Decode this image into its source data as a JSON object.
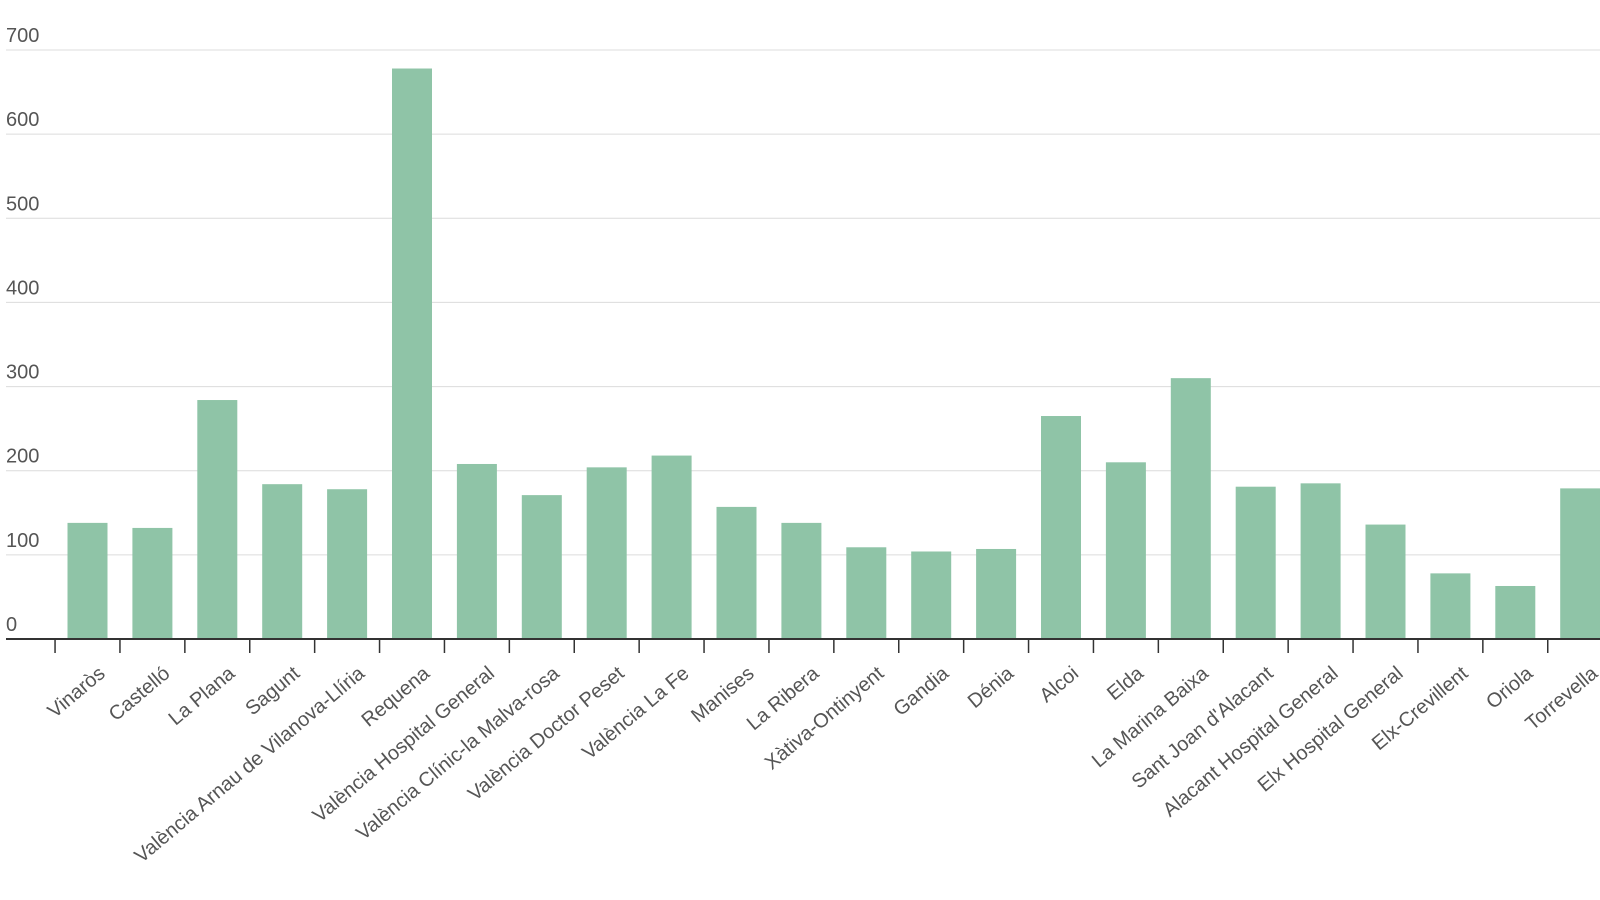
{
  "chart_data": {
    "type": "bar",
    "title": "",
    "xlabel": "",
    "ylabel": "",
    "ylim": [
      0,
      700
    ],
    "yticks": [
      0,
      100,
      200,
      300,
      400,
      500,
      600,
      700
    ],
    "grid": true,
    "bar_color": "#8fc4a7",
    "categories": [
      "Vinaròs",
      "Castelló",
      "La Plana",
      "Sagunt",
      "València Arnau de Vilanova-Llíria",
      "Requena",
      "València Hospital General",
      "València Clínic-la Malva-rosa",
      "València Doctor Peset",
      "València La Fe",
      "Manises",
      "La Ribera",
      "Xàtiva-Ontinyent",
      "Gandia",
      "Dénia",
      "Alcoi",
      "Elda",
      "La Marina Baixa",
      "Sant Joan d'Alacant",
      "Alacant Hospital General",
      "Elx Hospital General",
      "Elx-Crevillent",
      "Oriola",
      "Torrevella"
    ],
    "values": [
      138,
      132,
      284,
      184,
      178,
      678,
      208,
      171,
      204,
      218,
      157,
      138,
      109,
      104,
      107,
      265,
      210,
      310,
      181,
      185,
      136,
      78,
      63,
      179
    ]
  }
}
